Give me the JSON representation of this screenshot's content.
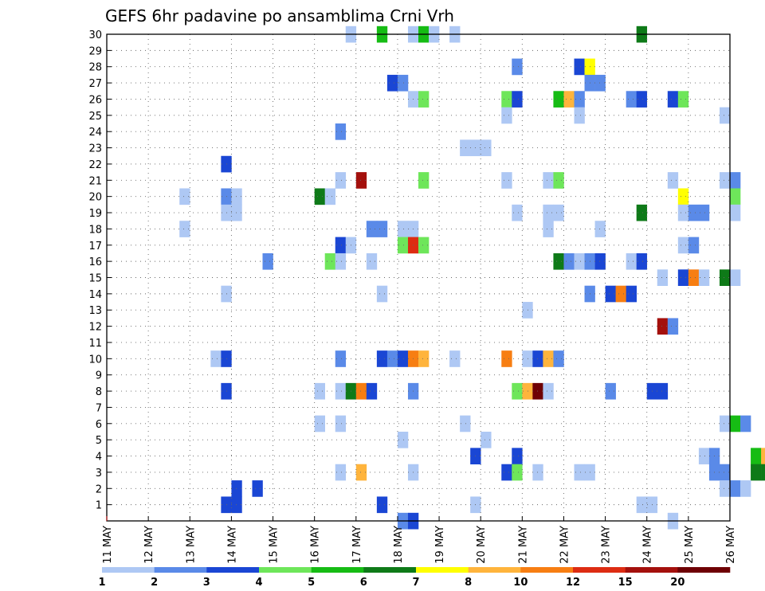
{
  "chart_data": {
    "type": "heatmap",
    "title": "GEFS 6hr padavine po ansamblima Crni Vrh",
    "y_ticks": [
      "1",
      "2",
      "3",
      "4",
      "5",
      "6",
      "7",
      "8",
      "9",
      "10",
      "11",
      "12",
      "13",
      "14",
      "15",
      "16",
      "17",
      "18",
      "19",
      "20",
      "21",
      "22",
      "23",
      "24",
      "25",
      "26",
      "27",
      "28",
      "29",
      "30"
    ],
    "x_ticks": [
      "11 MAY",
      "12 MAY",
      "13 MAY",
      "14 MAY",
      "15 MAY",
      "16 MAY",
      "17 MAY",
      "18 MAY",
      "19 MAY",
      "20 MAY",
      "21 MAY",
      "22 MAY",
      "23 MAY",
      "24 MAY",
      "25 MAY",
      "26 MAY"
    ],
    "x_range": [
      "11 MAY 00Z",
      "26 MAY 00Z"
    ],
    "y_range": [
      0,
      30
    ],
    "time_step_hours": 6,
    "grid": "dotted",
    "legend_placement": "bottom",
    "color_levels": [
      1,
      2,
      3,
      4,
      5,
      6,
      7,
      8,
      10,
      12,
      15,
      20
    ],
    "level_colors": [
      "#aec8f4",
      "#5a8ae8",
      "#1a46d4",
      "#6ee65a",
      "#16bc14",
      "#0e7a18",
      "#ffff00",
      "#ffb43c",
      "#f77e12",
      "#dd2c12",
      "#a4100c",
      "#6e0004"
    ],
    "note": "cells: [member, day index (0 = 11 MAY), 6h step within day (0-3), color class 0-11]",
    "cells": [
      [
        30,
        5,
        3,
        0
      ],
      [
        30,
        6,
        2,
        4
      ],
      [
        30,
        7,
        1,
        0
      ],
      [
        30,
        7,
        2,
        4
      ],
      [
        30,
        7,
        3,
        0
      ],
      [
        30,
        8,
        1,
        0
      ],
      [
        30,
        12,
        3,
        5
      ],
      [
        28,
        9,
        3,
        1
      ],
      [
        28,
        11,
        1,
        2
      ],
      [
        28,
        11,
        2,
        6
      ],
      [
        27,
        6,
        3,
        2
      ],
      [
        27,
        7,
        0,
        1
      ],
      [
        27,
        11,
        2,
        1
      ],
      [
        27,
        11,
        3,
        1
      ],
      [
        26,
        7,
        1,
        0
      ],
      [
        26,
        7,
        2,
        3
      ],
      [
        26,
        9,
        2,
        3
      ],
      [
        26,
        9,
        3,
        2
      ],
      [
        26,
        10,
        3,
        4
      ],
      [
        26,
        11,
        0,
        7
      ],
      [
        26,
        11,
        1,
        1
      ],
      [
        26,
        12,
        2,
        1
      ],
      [
        26,
        12,
        3,
        2
      ],
      [
        26,
        13,
        2,
        2
      ],
      [
        26,
        13,
        3,
        3
      ],
      [
        25,
        9,
        2,
        0
      ],
      [
        25,
        11,
        1,
        0
      ],
      [
        25,
        14,
        3,
        0
      ],
      [
        24,
        5,
        2,
        1
      ],
      [
        23,
        8,
        2,
        0
      ],
      [
        23,
        8,
        3,
        0
      ],
      [
        23,
        9,
        0,
        0
      ],
      [
        22,
        2,
        3,
        2
      ],
      [
        21,
        5,
        2,
        0
      ],
      [
        21,
        6,
        0,
        10
      ],
      [
        21,
        7,
        2,
        3
      ],
      [
        21,
        9,
        2,
        0
      ],
      [
        21,
        10,
        2,
        0
      ],
      [
        21,
        10,
        3,
        3
      ],
      [
        21,
        13,
        2,
        0
      ],
      [
        21,
        14,
        3,
        0
      ],
      [
        21,
        15,
        0,
        1
      ],
      [
        20,
        1,
        3,
        0
      ],
      [
        20,
        2,
        3,
        1
      ],
      [
        20,
        3,
        0,
        0
      ],
      [
        20,
        5,
        0,
        5
      ],
      [
        20,
        5,
        1,
        0
      ],
      [
        20,
        13,
        3,
        6
      ],
      [
        20,
        15,
        0,
        3
      ],
      [
        19,
        2,
        3,
        0
      ],
      [
        19,
        3,
        0,
        0
      ],
      [
        19,
        9,
        3,
        0
      ],
      [
        19,
        10,
        2,
        0
      ],
      [
        19,
        10,
        3,
        0
      ],
      [
        19,
        12,
        3,
        5
      ],
      [
        19,
        13,
        3,
        0
      ],
      [
        19,
        14,
        0,
        1
      ],
      [
        19,
        14,
        1,
        1
      ],
      [
        19,
        15,
        0,
        0
      ],
      [
        18,
        1,
        3,
        0
      ],
      [
        18,
        6,
        1,
        1
      ],
      [
        18,
        6,
        2,
        1
      ],
      [
        18,
        7,
        0,
        0
      ],
      [
        18,
        7,
        1,
        0
      ],
      [
        18,
        10,
        2,
        0
      ],
      [
        18,
        11,
        3,
        0
      ],
      [
        17,
        5,
        2,
        2
      ],
      [
        17,
        5,
        3,
        0
      ],
      [
        17,
        7,
        0,
        3
      ],
      [
        17,
        7,
        1,
        9
      ],
      [
        17,
        7,
        2,
        3
      ],
      [
        17,
        13,
        3,
        0
      ],
      [
        17,
        14,
        0,
        1
      ],
      [
        16,
        3,
        3,
        1
      ],
      [
        16,
        5,
        1,
        3
      ],
      [
        16,
        5,
        2,
        0
      ],
      [
        16,
        6,
        1,
        0
      ],
      [
        16,
        10,
        3,
        5
      ],
      [
        16,
        11,
        0,
        1
      ],
      [
        16,
        11,
        1,
        0
      ],
      [
        16,
        11,
        2,
        1
      ],
      [
        16,
        11,
        3,
        2
      ],
      [
        16,
        12,
        2,
        0
      ],
      [
        16,
        12,
        3,
        2
      ],
      [
        15,
        13,
        1,
        0
      ],
      [
        15,
        13,
        3,
        2
      ],
      [
        15,
        14,
        0,
        8
      ],
      [
        15,
        14,
        1,
        0
      ],
      [
        15,
        14,
        3,
        5
      ],
      [
        15,
        15,
        0,
        0
      ],
      [
        14,
        2,
        3,
        0
      ],
      [
        14,
        6,
        2,
        0
      ],
      [
        14,
        11,
        2,
        1
      ],
      [
        14,
        12,
        0,
        2
      ],
      [
        14,
        12,
        1,
        8
      ],
      [
        14,
        12,
        2,
        2
      ],
      [
        13,
        10,
        0,
        0
      ],
      [
        12,
        13,
        1,
        10
      ],
      [
        12,
        13,
        2,
        1
      ],
      [
        10,
        2,
        2,
        0
      ],
      [
        10,
        2,
        3,
        2
      ],
      [
        10,
        5,
        2,
        1
      ],
      [
        10,
        6,
        2,
        2
      ],
      [
        10,
        6,
        3,
        1
      ],
      [
        10,
        7,
        0,
        2
      ],
      [
        10,
        7,
        1,
        8
      ],
      [
        10,
        7,
        2,
        7
      ],
      [
        10,
        8,
        1,
        0
      ],
      [
        10,
        9,
        2,
        8
      ],
      [
        10,
        10,
        0,
        0
      ],
      [
        10,
        10,
        1,
        2
      ],
      [
        10,
        10,
        2,
        7
      ],
      [
        10,
        10,
        3,
        1
      ],
      [
        8,
        2,
        3,
        2
      ],
      [
        8,
        5,
        0,
        0
      ],
      [
        8,
        5,
        2,
        0
      ],
      [
        8,
        5,
        3,
        5
      ],
      [
        8,
        6,
        0,
        8
      ],
      [
        8,
        6,
        1,
        2
      ],
      [
        8,
        7,
        1,
        1
      ],
      [
        8,
        9,
        3,
        3
      ],
      [
        8,
        10,
        0,
        7
      ],
      [
        8,
        10,
        1,
        11
      ],
      [
        8,
        10,
        2,
        0
      ],
      [
        8,
        12,
        0,
        1
      ],
      [
        8,
        13,
        0,
        2
      ],
      [
        8,
        13,
        1,
        2
      ],
      [
        6,
        5,
        0,
        0
      ],
      [
        6,
        5,
        2,
        0
      ],
      [
        6,
        8,
        2,
        0
      ],
      [
        6,
        14,
        3,
        0
      ],
      [
        6,
        15,
        0,
        4
      ],
      [
        6,
        15,
        1,
        1
      ],
      [
        5,
        7,
        0,
        0
      ],
      [
        5,
        9,
        0,
        0
      ],
      [
        4,
        8,
        3,
        2
      ],
      [
        4,
        9,
        3,
        2
      ],
      [
        4,
        14,
        1,
        0
      ],
      [
        4,
        14,
        2,
        1
      ],
      [
        4,
        15,
        2,
        4
      ],
      [
        4,
        15,
        3,
        7
      ],
      [
        3,
        5,
        2,
        0
      ],
      [
        3,
        6,
        0,
        7
      ],
      [
        3,
        7,
        1,
        0
      ],
      [
        3,
        9,
        2,
        2
      ],
      [
        3,
        9,
        3,
        3
      ],
      [
        3,
        10,
        1,
        0
      ],
      [
        3,
        11,
        1,
        0
      ],
      [
        3,
        11,
        2,
        0
      ],
      [
        3,
        14,
        2,
        1
      ],
      [
        3,
        14,
        3,
        1
      ],
      [
        3,
        15,
        2,
        5
      ],
      [
        3,
        15,
        3,
        5
      ],
      [
        2,
        3,
        0,
        2
      ],
      [
        2,
        3,
        2,
        2
      ],
      [
        2,
        14,
        3,
        0
      ],
      [
        2,
        15,
        0,
        1
      ],
      [
        2,
        15,
        1,
        0
      ],
      [
        1,
        2,
        3,
        2
      ],
      [
        1,
        3,
        0,
        2
      ],
      [
        1,
        6,
        2,
        2
      ],
      [
        1,
        8,
        3,
        0
      ],
      [
        1,
        12,
        3,
        0
      ],
      [
        1,
        13,
        0,
        0
      ],
      [
        0,
        7,
        0,
        1
      ],
      [
        0,
        7,
        1,
        2
      ],
      [
        0,
        13,
        2,
        0
      ]
    ]
  }
}
